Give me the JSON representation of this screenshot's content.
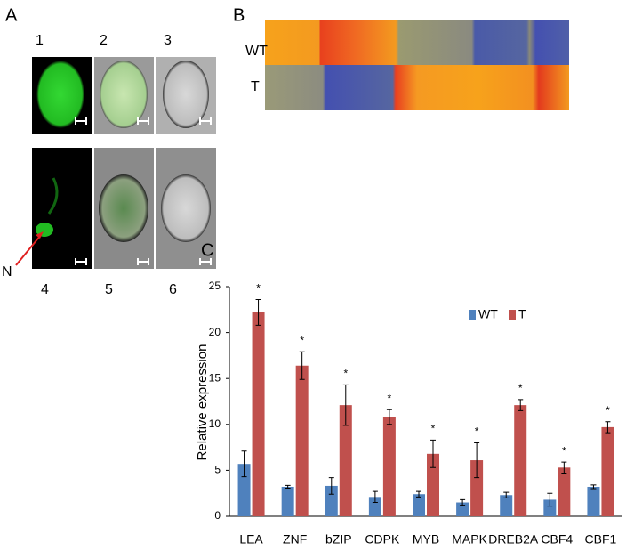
{
  "panel_a": {
    "label": "A",
    "image_labels": [
      "1",
      "2",
      "3",
      "4",
      "5",
      "6"
    ],
    "arrow_label": "N"
  },
  "panel_b": {
    "label": "B",
    "row_labels": [
      "WT",
      "T"
    ]
  },
  "panel_c_label": "C",
  "chart_data": {
    "type": "bar",
    "ylabel": "Relative expression",
    "categories": [
      "LEA",
      "ZNF",
      "bZIP",
      "CDPK",
      "MYB",
      "MAPK",
      "DREB2A",
      "CBF4",
      "CBF1"
    ],
    "series": [
      {
        "name": "WT",
        "color": "#4f81bd",
        "values": [
          5.7,
          3.2,
          3.3,
          2.1,
          2.4,
          1.5,
          2.3,
          1.8,
          3.2
        ],
        "errors": [
          1.4,
          0.15,
          0.9,
          0.6,
          0.3,
          0.3,
          0.3,
          0.7,
          0.2
        ]
      },
      {
        "name": "T",
        "color": "#c0504d",
        "values": [
          22.2,
          16.4,
          12.1,
          10.8,
          6.8,
          6.1,
          12.1,
          5.3,
          9.7
        ],
        "errors": [
          1.4,
          1.5,
          2.2,
          0.8,
          1.5,
          1.9,
          0.6,
          0.6,
          0.6
        ]
      }
    ],
    "annotations": [
      "*",
      "*",
      "*",
      "*",
      "*",
      "*",
      "*",
      "*",
      "*"
    ],
    "ylim": [
      0,
      25
    ],
    "yticks": [
      0,
      5,
      10,
      15,
      20,
      25
    ],
    "grid": false,
    "legend": "top-right"
  }
}
